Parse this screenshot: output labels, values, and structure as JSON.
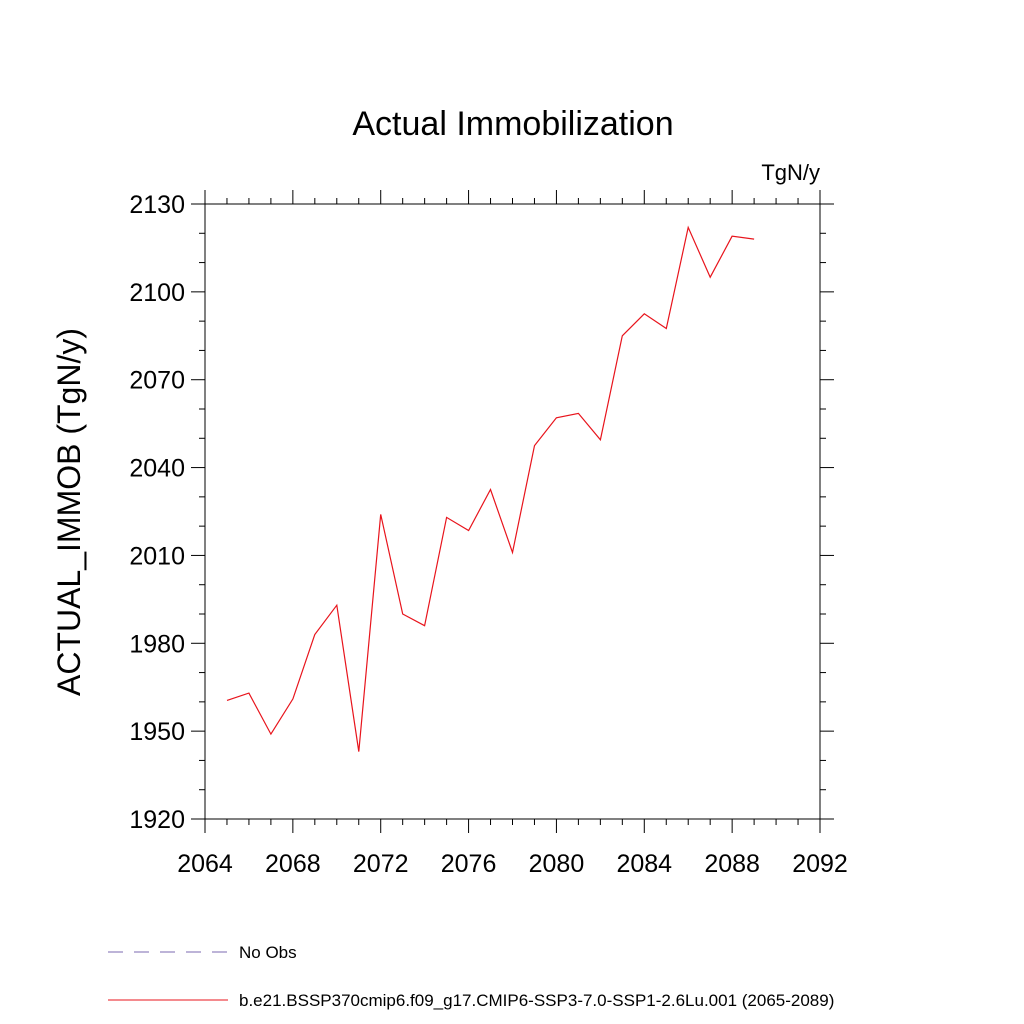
{
  "chart_data": {
    "type": "line",
    "title": "Actual Immobilization",
    "units": "TgN/y",
    "ylabel": "ACTUAL_IMMOB  (TgN/y)",
    "xlabel": "",
    "xlim": [
      2064,
      2092
    ],
    "ylim": [
      1920,
      2130
    ],
    "x_ticks": [
      2064,
      2068,
      2072,
      2076,
      2080,
      2084,
      2088,
      2092
    ],
    "y_ticks": [
      1920,
      1950,
      1980,
      2010,
      2040,
      2070,
      2100,
      2130
    ],
    "grid": false,
    "legend_position": "bottom",
    "series": [
      {
        "name": "No Obs",
        "color": "#7b68b0",
        "dash": "dashed",
        "x": [],
        "y": []
      },
      {
        "name": "b.e21.BSSP370cmip6.f09_g17.CMIP6-SSP3-7.0-SSP1-2.6Lu.001 (2065-2089)",
        "color": "#e8141c",
        "dash": "solid",
        "x": [
          2065,
          2066,
          2067,
          2068,
          2069,
          2070,
          2071,
          2072,
          2073,
          2074,
          2075,
          2076,
          2077,
          2078,
          2079,
          2080,
          2081,
          2082,
          2083,
          2084,
          2085,
          2086,
          2087,
          2088,
          2089
        ],
        "y": [
          1960.5,
          1963,
          1949,
          1961,
          1983,
          1993,
          1943,
          2024,
          1990,
          1986,
          2023,
          2018.5,
          2032.5,
          2011,
          2047.5,
          2057,
          2058.5,
          2049.5,
          2085,
          2092.5,
          2087.5,
          2122,
          2105,
          2119,
          2118
        ]
      }
    ]
  }
}
